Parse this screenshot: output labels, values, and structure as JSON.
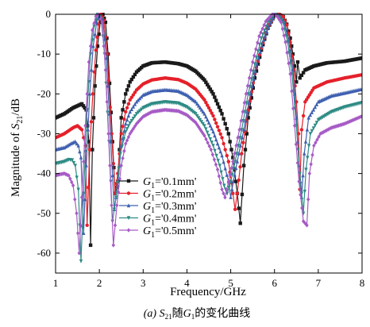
{
  "chart_data": {
    "type": "line",
    "xlabel": "Frequency/GHz",
    "ylabel_text": "Magnitude of ",
    "ylabel_symbol": "S",
    "ylabel_sub": "21",
    "ylabel_unit": "/dB",
    "xlim": [
      1,
      8
    ],
    "ylim": [
      -65,
      0
    ],
    "xticks": [
      1,
      2,
      3,
      4,
      5,
      6,
      7,
      8
    ],
    "yticks": [
      0,
      -10,
      -20,
      -30,
      -40,
      -50,
      -60
    ],
    "grid": false,
    "legend_position": "center-left",
    "legend_symbol": "G",
    "legend_sub": "1",
    "caption": {
      "prefix": "(a) ",
      "s": "S",
      "s_sub": "21",
      "mid": "随",
      "g": "G",
      "g_sub": "1",
      "suffix": "的变化曲线"
    },
    "series": [
      {
        "name": "='0.1mm'",
        "color": "#1a1a1a",
        "marker": "square",
        "points": [
          [
            1,
            -26
          ],
          [
            1.2,
            -25
          ],
          [
            1.4,
            -23.5
          ],
          [
            1.6,
            -22.5
          ],
          [
            1.7,
            -24
          ],
          [
            1.76,
            -32
          ],
          [
            1.8,
            -58
          ],
          [
            1.84,
            -34
          ],
          [
            1.9,
            -18
          ],
          [
            1.96,
            -8
          ],
          [
            2.02,
            -2
          ],
          [
            2.08,
            0
          ],
          [
            2.14,
            -2
          ],
          [
            2.2,
            -10
          ],
          [
            2.3,
            -32
          ],
          [
            2.36,
            -45
          ],
          [
            2.42,
            -42
          ],
          [
            2.5,
            -26
          ],
          [
            2.6,
            -20
          ],
          [
            2.7,
            -17
          ],
          [
            2.85,
            -14.5
          ],
          [
            3,
            -13
          ],
          [
            3.2,
            -12.2
          ],
          [
            3.5,
            -12
          ],
          [
            3.8,
            -12.4
          ],
          [
            4,
            -13
          ],
          [
            4.2,
            -14.3
          ],
          [
            4.4,
            -16.5
          ],
          [
            4.6,
            -20
          ],
          [
            4.8,
            -25
          ],
          [
            4.95,
            -30
          ],
          [
            5.05,
            -36
          ],
          [
            5.15,
            -45
          ],
          [
            5.22,
            -52.5
          ],
          [
            5.3,
            -38
          ],
          [
            5.4,
            -26
          ],
          [
            5.55,
            -16
          ],
          [
            5.7,
            -9
          ],
          [
            5.85,
            -3.5
          ],
          [
            6,
            -0.3
          ],
          [
            6.1,
            0
          ],
          [
            6.2,
            -0.6
          ],
          [
            6.28,
            -2.5
          ],
          [
            6.36,
            -6
          ],
          [
            6.42,
            -10
          ],
          [
            6.46,
            -13
          ],
          [
            6.5,
            -17
          ],
          [
            6.53,
            -12
          ],
          [
            6.58,
            -16
          ],
          [
            6.7,
            -14
          ],
          [
            6.9,
            -13
          ],
          [
            7.2,
            -12.2
          ],
          [
            7.6,
            -11.8
          ],
          [
            8,
            -11
          ]
        ]
      },
      {
        "name": "='0.2mm'",
        "color": "#e5202a",
        "marker": "circle",
        "points": [
          [
            1,
            -31
          ],
          [
            1.2,
            -30
          ],
          [
            1.4,
            -28.5
          ],
          [
            1.5,
            -28
          ],
          [
            1.6,
            -29
          ],
          [
            1.68,
            -33
          ],
          [
            1.72,
            -53
          ],
          [
            1.78,
            -34
          ],
          [
            1.85,
            -20
          ],
          [
            1.92,
            -9
          ],
          [
            1.98,
            -2.5
          ],
          [
            2.04,
            0
          ],
          [
            2.1,
            -1.5
          ],
          [
            2.18,
            -10
          ],
          [
            2.28,
            -30
          ],
          [
            2.36,
            -45
          ],
          [
            2.42,
            -40
          ],
          [
            2.5,
            -30
          ],
          [
            2.6,
            -24.5
          ],
          [
            2.7,
            -21.5
          ],
          [
            2.85,
            -19
          ],
          [
            3,
            -17.5
          ],
          [
            3.2,
            -16.5
          ],
          [
            3.5,
            -16
          ],
          [
            3.8,
            -16.4
          ],
          [
            4,
            -17.3
          ],
          [
            4.2,
            -18.8
          ],
          [
            4.4,
            -21.5
          ],
          [
            4.6,
            -25.5
          ],
          [
            4.8,
            -31
          ],
          [
            4.95,
            -37
          ],
          [
            5.05,
            -45
          ],
          [
            5.1,
            -49
          ],
          [
            5.15,
            -45
          ],
          [
            5.25,
            -35
          ],
          [
            5.4,
            -24
          ],
          [
            5.55,
            -15
          ],
          [
            5.7,
            -8.5
          ],
          [
            5.85,
            -3.3
          ],
          [
            6,
            -0.3
          ],
          [
            6.1,
            0
          ],
          [
            6.2,
            -0.6
          ],
          [
            6.28,
            -2.7
          ],
          [
            6.36,
            -7
          ],
          [
            6.44,
            -14
          ],
          [
            6.5,
            -22
          ],
          [
            6.55,
            -30
          ],
          [
            6.58,
            -44
          ],
          [
            6.62,
            -29
          ],
          [
            6.7,
            -22
          ],
          [
            6.9,
            -18.5
          ],
          [
            7.2,
            -17
          ],
          [
            7.6,
            -16
          ],
          [
            8,
            -15.2
          ]
        ]
      },
      {
        "name": "='0.3mm'",
        "color": "#3f60b0",
        "marker": "triangle-up",
        "points": [
          [
            1,
            -34
          ],
          [
            1.2,
            -33.5
          ],
          [
            1.35,
            -32.5
          ],
          [
            1.45,
            -32
          ],
          [
            1.52,
            -33
          ],
          [
            1.58,
            -36
          ],
          [
            1.64,
            -55
          ],
          [
            1.7,
            -38
          ],
          [
            1.78,
            -20
          ],
          [
            1.86,
            -8
          ],
          [
            1.94,
            -2
          ],
          [
            2,
            0
          ],
          [
            2.08,
            -1.5
          ],
          [
            2.16,
            -11
          ],
          [
            2.26,
            -32
          ],
          [
            2.34,
            -49
          ],
          [
            2.42,
            -43
          ],
          [
            2.5,
            -33
          ],
          [
            2.6,
            -27.5
          ],
          [
            2.7,
            -24.5
          ],
          [
            2.85,
            -22
          ],
          [
            3,
            -20.3
          ],
          [
            3.2,
            -19.4
          ],
          [
            3.5,
            -19
          ],
          [
            3.8,
            -19.3
          ],
          [
            4,
            -20.3
          ],
          [
            4.2,
            -22
          ],
          [
            4.4,
            -25
          ],
          [
            4.6,
            -29.5
          ],
          [
            4.8,
            -35.5
          ],
          [
            4.95,
            -42
          ],
          [
            5,
            -46
          ],
          [
            5.06,
            -42
          ],
          [
            5.15,
            -37
          ],
          [
            5.3,
            -29
          ],
          [
            5.45,
            -20
          ],
          [
            5.6,
            -12.5
          ],
          [
            5.75,
            -6.5
          ],
          [
            5.9,
            -2.3
          ],
          [
            6.02,
            0
          ],
          [
            6.12,
            -0.4
          ],
          [
            6.22,
            -2
          ],
          [
            6.32,
            -6.5
          ],
          [
            6.42,
            -14
          ],
          [
            6.5,
            -26
          ],
          [
            6.56,
            -38
          ],
          [
            6.62,
            -46
          ],
          [
            6.68,
            -35
          ],
          [
            6.78,
            -26
          ],
          [
            7,
            -22
          ],
          [
            7.3,
            -20.5
          ],
          [
            7.6,
            -19.8
          ],
          [
            8,
            -18.8
          ]
        ]
      },
      {
        "name": "='0.4mm'",
        "color": "#2e8b84",
        "marker": "triangle-down",
        "points": [
          [
            1,
            -37.5
          ],
          [
            1.2,
            -37
          ],
          [
            1.3,
            -36.5
          ],
          [
            1.38,
            -36.6
          ],
          [
            1.45,
            -38
          ],
          [
            1.52,
            -44
          ],
          [
            1.58,
            -62
          ],
          [
            1.64,
            -45
          ],
          [
            1.72,
            -24
          ],
          [
            1.8,
            -10
          ],
          [
            1.88,
            -3
          ],
          [
            1.96,
            0
          ],
          [
            2.04,
            -1
          ],
          [
            2.12,
            -10
          ],
          [
            2.22,
            -32
          ],
          [
            2.3,
            -52
          ],
          [
            2.38,
            -46
          ],
          [
            2.48,
            -35
          ],
          [
            2.6,
            -29.5
          ],
          [
            2.7,
            -27.3
          ],
          [
            2.85,
            -25
          ],
          [
            3,
            -23.5
          ],
          [
            3.2,
            -22.5
          ],
          [
            3.5,
            -22
          ],
          [
            3.8,
            -22.3
          ],
          [
            4,
            -23.3
          ],
          [
            4.2,
            -25
          ],
          [
            4.4,
            -28
          ],
          [
            4.6,
            -33
          ],
          [
            4.75,
            -38
          ],
          [
            4.85,
            -43
          ],
          [
            4.92,
            -45
          ],
          [
            5,
            -42
          ],
          [
            5.1,
            -37
          ],
          [
            5.25,
            -29
          ],
          [
            5.4,
            -20
          ],
          [
            5.55,
            -12.5
          ],
          [
            5.7,
            -6
          ],
          [
            5.85,
            -2
          ],
          [
            5.98,
            0
          ],
          [
            6.08,
            -0.3
          ],
          [
            6.2,
            -2.2
          ],
          [
            6.3,
            -7
          ],
          [
            6.4,
            -15
          ],
          [
            6.5,
            -28
          ],
          [
            6.58,
            -40
          ],
          [
            6.66,
            -50
          ],
          [
            6.72,
            -39
          ],
          [
            6.82,
            -30
          ],
          [
            7,
            -26.5
          ],
          [
            7.3,
            -24.5
          ],
          [
            7.6,
            -23.3
          ],
          [
            8,
            -22.2
          ]
        ]
      },
      {
        "name": "='0.5mm'",
        "color": "#a75bc6",
        "marker": "diamond",
        "points": [
          [
            1,
            -40.5
          ],
          [
            1.1,
            -40.2
          ],
          [
            1.2,
            -40
          ],
          [
            1.3,
            -40.5
          ],
          [
            1.4,
            -43
          ],
          [
            1.48,
            -50
          ],
          [
            1.54,
            -60
          ],
          [
            1.6,
            -46
          ],
          [
            1.68,
            -28
          ],
          [
            1.76,
            -12
          ],
          [
            1.84,
            -4
          ],
          [
            1.92,
            -0.5
          ],
          [
            1.98,
            0
          ],
          [
            2.06,
            -2
          ],
          [
            2.14,
            -14
          ],
          [
            2.24,
            -38
          ],
          [
            2.32,
            -58
          ],
          [
            2.4,
            -48
          ],
          [
            2.5,
            -38
          ],
          [
            2.6,
            -32.5
          ],
          [
            2.7,
            -30
          ],
          [
            2.85,
            -27.5
          ],
          [
            3,
            -25.7
          ],
          [
            3.2,
            -24.5
          ],
          [
            3.5,
            -24
          ],
          [
            3.8,
            -24.3
          ],
          [
            4,
            -25.3
          ],
          [
            4.2,
            -27.2
          ],
          [
            4.4,
            -30.5
          ],
          [
            4.55,
            -34
          ],
          [
            4.7,
            -39
          ],
          [
            4.8,
            -44
          ],
          [
            4.87,
            -46
          ],
          [
            4.95,
            -42
          ],
          [
            5.05,
            -37
          ],
          [
            5.2,
            -29
          ],
          [
            5.35,
            -20
          ],
          [
            5.5,
            -12
          ],
          [
            5.65,
            -5.5
          ],
          [
            5.8,
            -1.8
          ],
          [
            5.95,
            0
          ],
          [
            6.05,
            -0.3
          ],
          [
            6.15,
            -2
          ],
          [
            6.25,
            -7
          ],
          [
            6.36,
            -15
          ],
          [
            6.46,
            -28
          ],
          [
            6.56,
            -42
          ],
          [
            6.66,
            -52
          ],
          [
            6.74,
            -53
          ],
          [
            6.8,
            -40
          ],
          [
            6.9,
            -33
          ],
          [
            7.05,
            -30
          ],
          [
            7.3,
            -28.5
          ],
          [
            7.6,
            -27.5
          ],
          [
            8,
            -25.6
          ]
        ]
      }
    ]
  }
}
